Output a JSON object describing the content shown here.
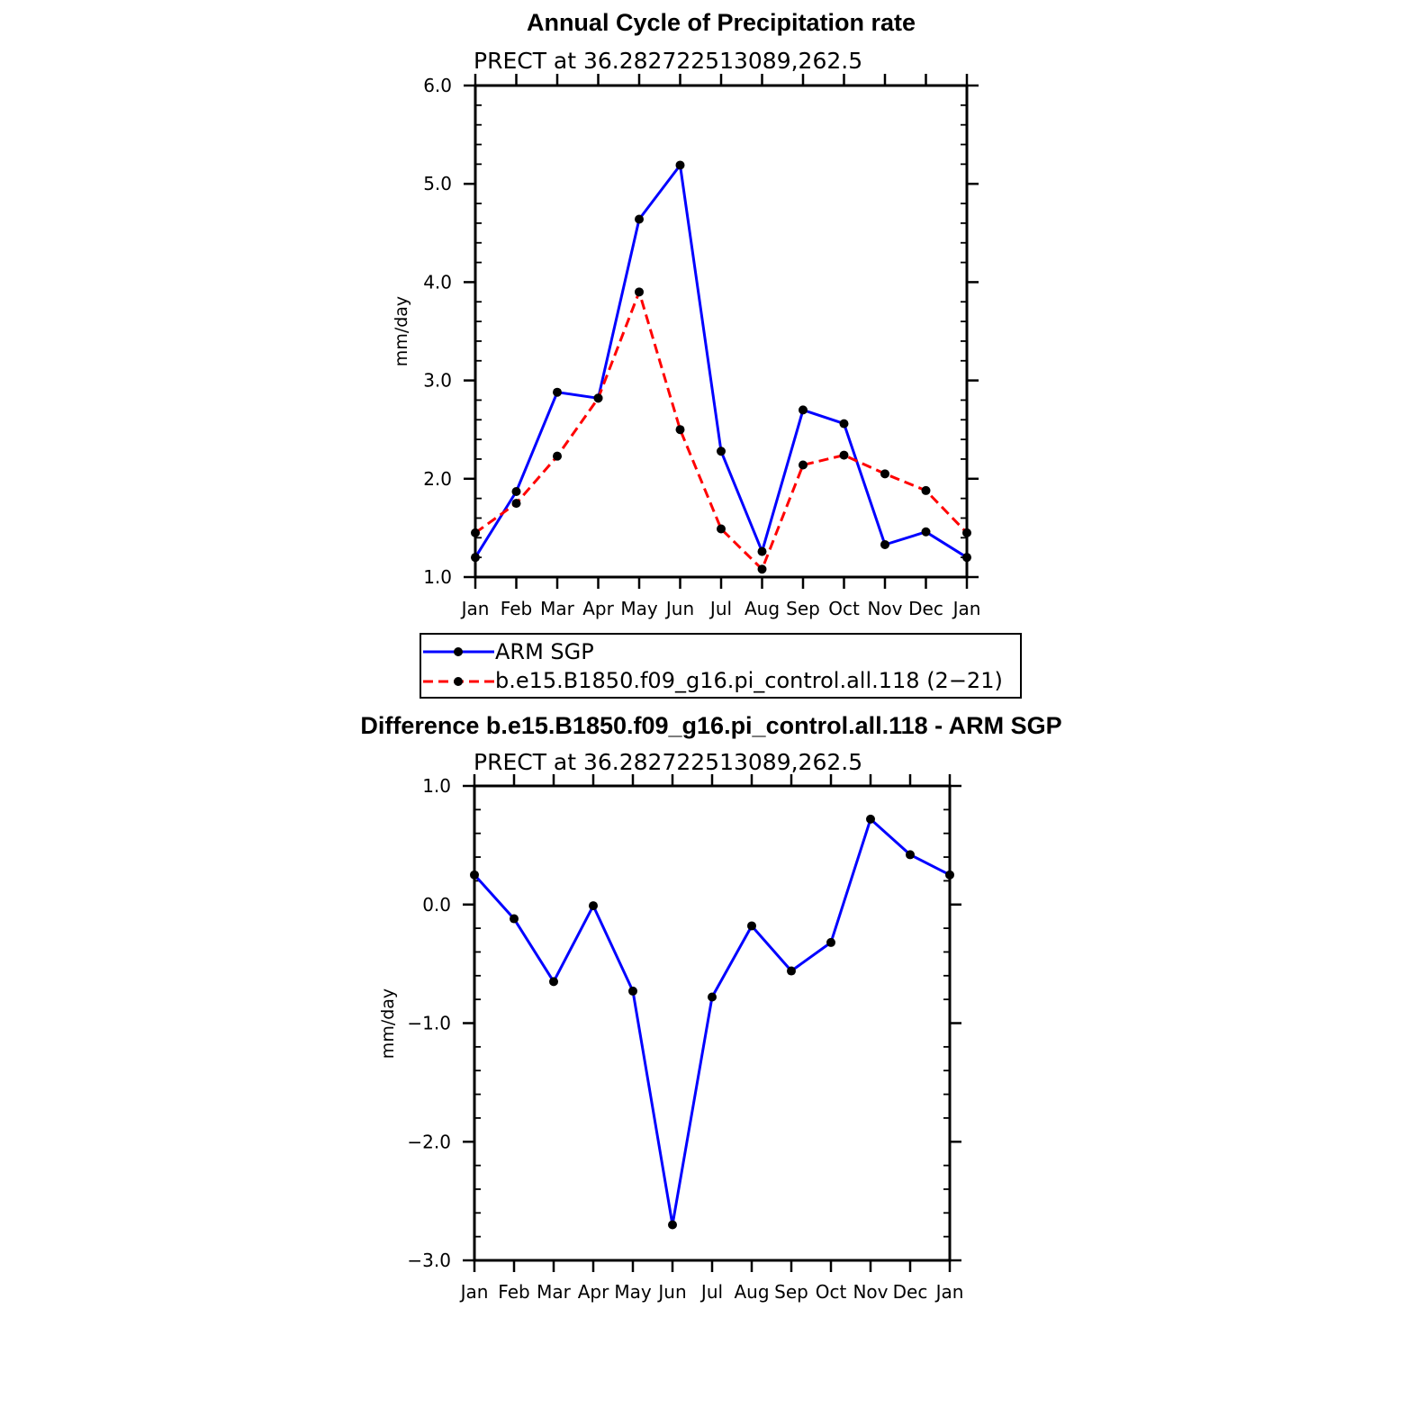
{
  "colors": {
    "obs": "#0000ff",
    "model": "#ff0000",
    "marker": "#000000"
  },
  "chart_data": [
    {
      "type": "line",
      "title": "Annual Cycle of Precipitation rate",
      "subtitle": "PRECT at 36.282722513089,262.5",
      "ylabel": "mm/day",
      "ylim": [
        1.0,
        6.0
      ],
      "yticks": [
        "1.0",
        "2.0",
        "3.0",
        "4.0",
        "5.0",
        "6.0"
      ],
      "categories": [
        "Jan",
        "Feb",
        "Mar",
        "Apr",
        "May",
        "Jun",
        "Jul",
        "Aug",
        "Sep",
        "Oct",
        "Nov",
        "Dec",
        "Jan"
      ],
      "series": [
        {
          "name": "ARM SGP",
          "style": "solid",
          "color": "#0000ff",
          "values": [
            1.2,
            1.87,
            2.88,
            2.82,
            4.64,
            5.19,
            2.28,
            1.26,
            2.7,
            2.56,
            1.33,
            1.46,
            1.2
          ]
        },
        {
          "name": "b.e15.B1850.f09_g16.pi_control.all.118 (2−21)",
          "style": "dashed",
          "color": "#ff0000",
          "values": [
            1.45,
            1.75,
            2.23,
            2.82,
            3.9,
            2.5,
            1.49,
            1.08,
            2.14,
            2.24,
            2.05,
            1.88,
            1.45
          ]
        }
      ],
      "legend": {
        "placement": "below"
      }
    },
    {
      "type": "line",
      "title": "Difference b.e15.B1850.f09_g16.pi_control.all.118 - ARM SGP",
      "subtitle": "PRECT at 36.282722513089,262.5",
      "ylabel": "mm/day",
      "ylim": [
        -3.0,
        1.0
      ],
      "yticks": [
        "−3.0",
        "−2.0",
        "−1.0",
        "0.0",
        "1.0"
      ],
      "categories": [
        "Jan",
        "Feb",
        "Mar",
        "Apr",
        "May",
        "Jun",
        "Jul",
        "Aug",
        "Sep",
        "Oct",
        "Nov",
        "Dec",
        "Jan"
      ],
      "series": [
        {
          "name": "Difference",
          "style": "solid",
          "color": "#0000ff",
          "values": [
            0.25,
            -0.12,
            -0.65,
            -0.01,
            -0.73,
            -2.7,
            -0.78,
            -0.18,
            -0.56,
            -0.32,
            0.72,
            0.42,
            0.25
          ]
        }
      ]
    }
  ]
}
